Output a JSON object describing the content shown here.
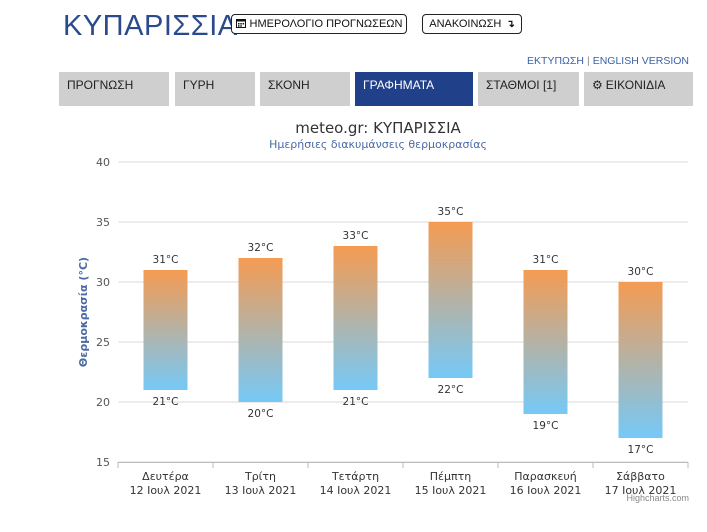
{
  "header": {
    "title": "ΚΥΠΑΡΙΣΣΙΑ",
    "calendar_button": {
      "label": "ΗΜΕΡΟΛΟΓΙΟ ΠΡΟΓΝΩΣΕΩΝ",
      "icon": "calendar-icon"
    },
    "announce_button": {
      "label": "ΑΝΑΚΟΙΝΩΣΗ",
      "icon": "arrow-down-icon"
    },
    "links": {
      "print": "ΕΚΤΥΠΩΣΗ",
      "separator": "|",
      "english": "ENGLISH VERSION"
    }
  },
  "tabs": [
    {
      "label": "ΠΡΟΓΝΩΣΗ",
      "active": false
    },
    {
      "label": "ΓΥΡΗ",
      "active": false
    },
    {
      "label": "ΣΚΟΝΗ",
      "active": false
    },
    {
      "label": "ΓΡΑΦΗΜΑΤΑ",
      "active": true
    },
    {
      "label": "ΣΤΑΘΜΟΙ [1]",
      "active": false
    },
    {
      "label": "ΕΙΚΟΝΙΔΙΑ",
      "active": false,
      "icon": "gear-icon"
    }
  ],
  "colors": {
    "accent": "#20418a",
    "tab": "#cfcfcf",
    "bar_top": "#f59b52",
    "bar_bottom": "#75c9f7",
    "title": "#2a4a8c"
  },
  "chart_data": {
    "type": "bar",
    "title": "meteo.gr: ΚΥΠΑΡΙΣΣΙΑ",
    "subtitle": "Ημερήσιες διακυμάνσεις θερμοκρασίας",
    "ylabel": "Θερμοκρασία (°C)",
    "ylim": [
      15,
      40
    ],
    "yticks": [
      15,
      20,
      25,
      30,
      35,
      40
    ],
    "grid": true,
    "unit": "°C",
    "categories": [
      {
        "day": "Δευτέρα",
        "date": "12 Ιουλ 2021"
      },
      {
        "day": "Τρίτη",
        "date": "13 Ιουλ 2021"
      },
      {
        "day": "Τετάρτη",
        "date": "14 Ιουλ 2021"
      },
      {
        "day": "Πέμπτη",
        "date": "15 Ιουλ 2021"
      },
      {
        "day": "Παρασκευή",
        "date": "16 Ιουλ 2021"
      },
      {
        "day": "Σάββατο",
        "date": "17 Ιουλ 2021"
      }
    ],
    "min": [
      21,
      20,
      21,
      22,
      19,
      17
    ],
    "max": [
      31,
      32,
      33,
      35,
      31,
      30
    ],
    "credits": "Highcharts.com"
  }
}
